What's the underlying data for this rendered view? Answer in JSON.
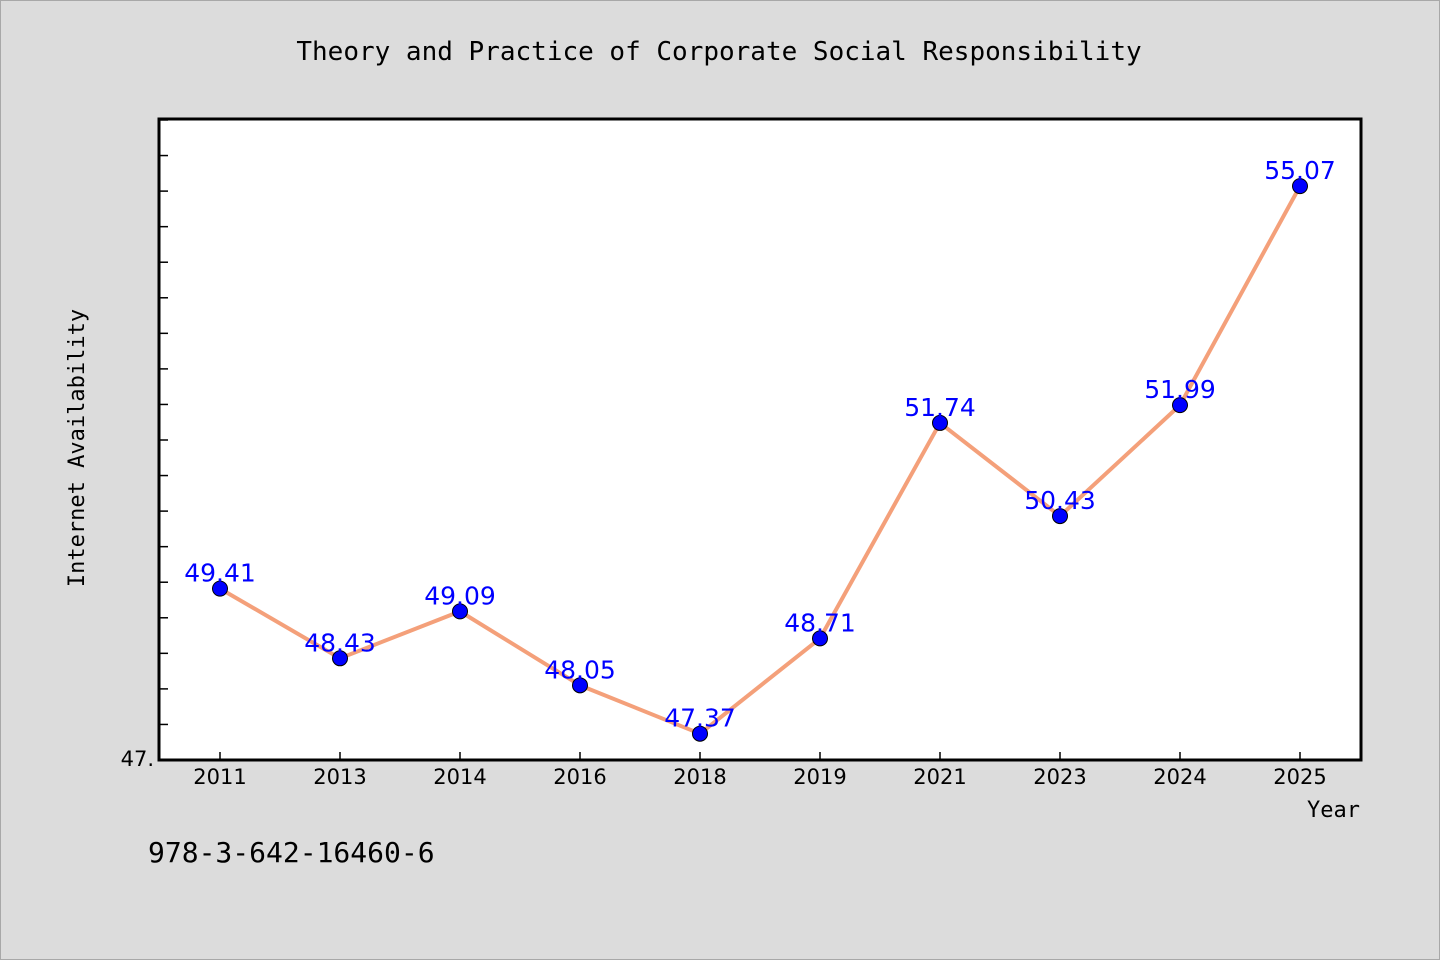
{
  "chart_data": {
    "type": "line",
    "title": "Theory and Practice of Corporate Social Responsibility",
    "xlabel": "Year",
    "ylabel": "Internet Availability",
    "categories": [
      "2011",
      "2013",
      "2014",
      "2016",
      "2018",
      "2019",
      "2021",
      "2023",
      "2024",
      "2025"
    ],
    "series": [
      {
        "values": [
          49.41,
          48.43,
          49.09,
          48.05,
          47.37,
          48.71,
          51.74,
          50.43,
          51.99,
          55.07
        ],
        "data_labels": [
          "49.41",
          "48.43",
          "49.09",
          "48.05",
          "47.37",
          "48.71",
          "51.74",
          "50.43",
          "51.99",
          "55.07"
        ]
      }
    ],
    "ylim": [
      47.0,
      56.0
    ],
    "y_tick_label": "47.",
    "grid": false,
    "legend": "none",
    "colors": {
      "line": "#f4a07a",
      "marker": "#0000ff",
      "labels": "#0000ff",
      "background": "#dcdcdc",
      "plot_background": "#ffffff"
    }
  },
  "footer": {
    "isbn": "978-3-642-16460-6"
  }
}
